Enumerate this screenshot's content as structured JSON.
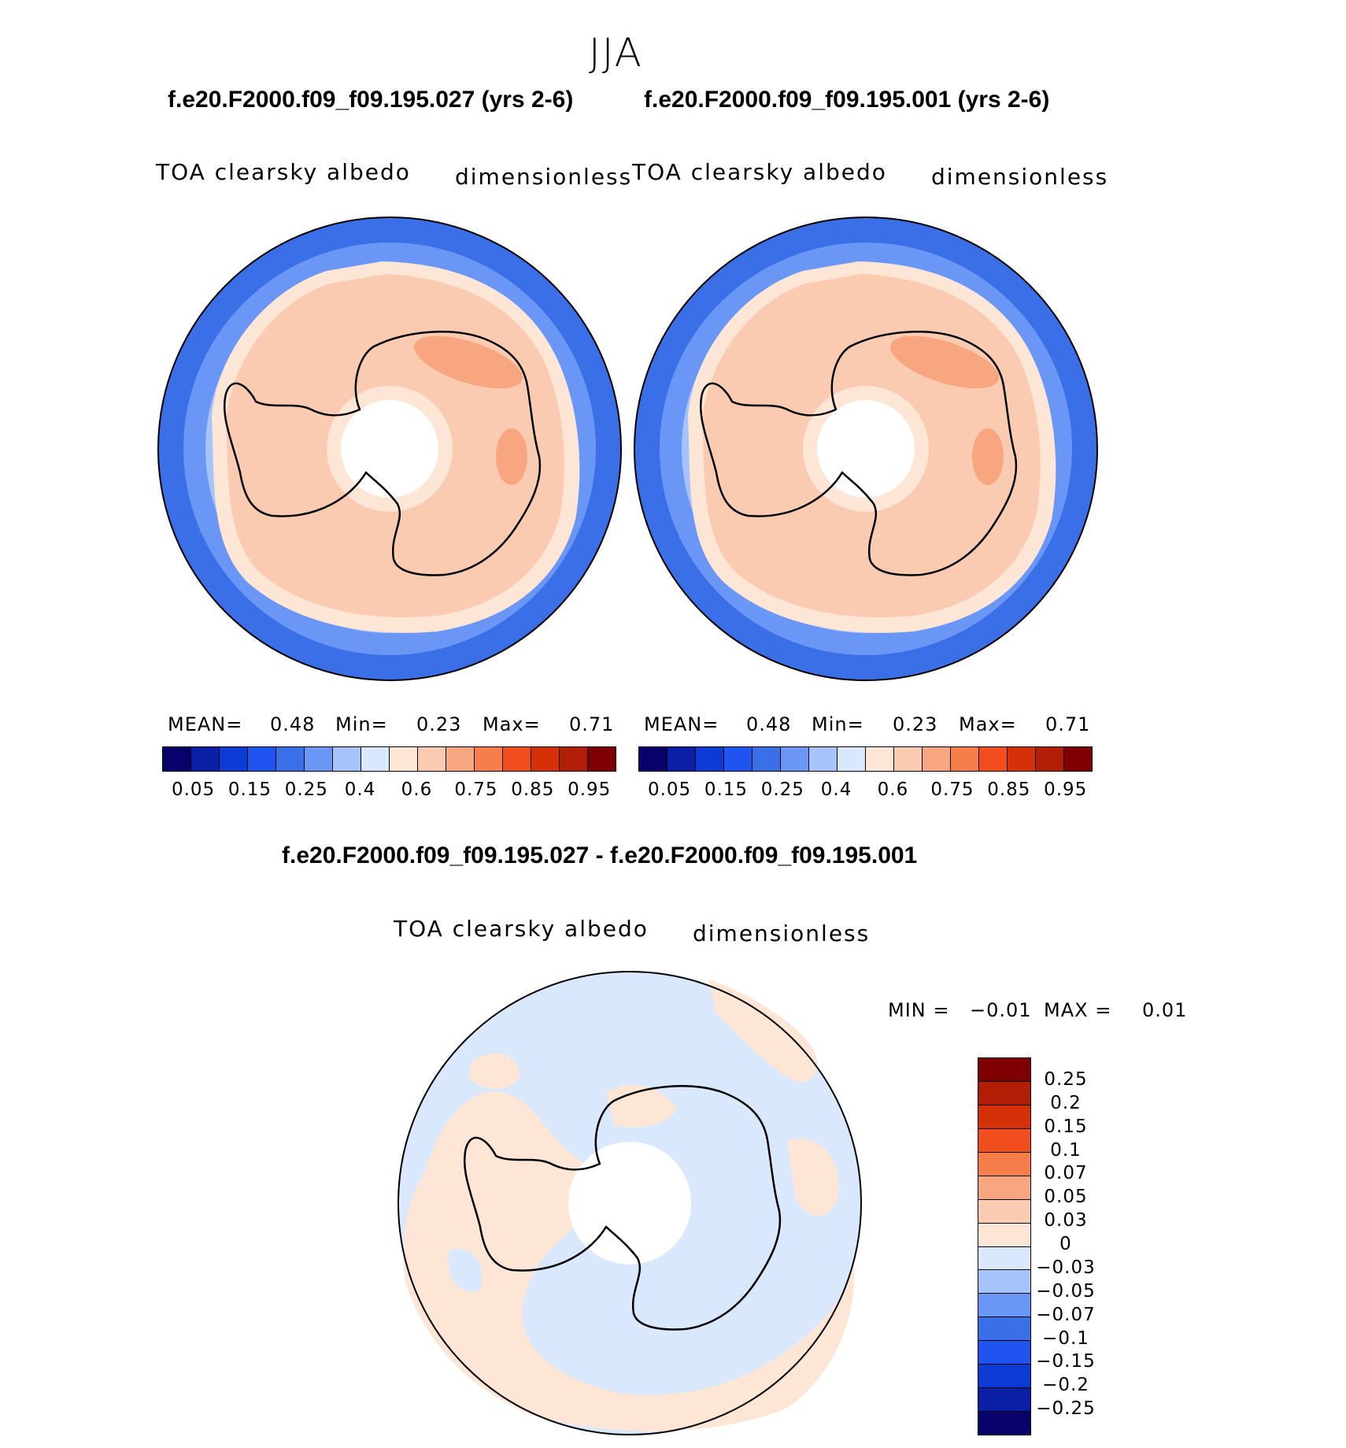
{
  "season": "JJA",
  "panels": [
    {
      "case_title": "f.e20.F2000.f09_f09.195.027 (yrs 2-6)",
      "variable": "TOA clearsky albedo",
      "units": "dimensionless",
      "stats": {
        "mean_label": "MEAN=",
        "mean": "0.48",
        "min_label": "Min=",
        "min": "0.23",
        "max_label": "Max=",
        "max": "0.71"
      }
    },
    {
      "case_title": "f.e20.F2000.f09_f09.195.001 (yrs 2-6)",
      "variable": "TOA clearsky albedo",
      "units": "dimensionless",
      "stats": {
        "mean_label": "MEAN=",
        "mean": "0.48",
        "min_label": "Min=",
        "min": "0.23",
        "max_label": "Max=",
        "max": "0.71"
      }
    }
  ],
  "abs_colorbar": {
    "colors": [
      "#08006b",
      "#0a1fa6",
      "#0d39d4",
      "#1f54f0",
      "#3b6fe8",
      "#6a96f5",
      "#a6c4fb",
      "#d9e8fd",
      "#fde6d6",
      "#fbcbb1",
      "#f8a67f",
      "#f67e4b",
      "#f24d1f",
      "#d63008",
      "#b11d05",
      "#7e0003"
    ],
    "tick_labels": [
      "0.05",
      "0.15",
      "0.25",
      "0.4",
      "0.6",
      "0.75",
      "0.85",
      "0.95"
    ]
  },
  "diff_panel": {
    "title": "f.e20.F2000.f09_f09.195.027 - f.e20.F2000.f09_f09.195.001",
    "variable": "TOA clearsky albedo",
    "units": "dimensionless",
    "stats": {
      "min_label": "MIN =",
      "min": "−0.01",
      "max_label": "MAX =",
      "max": "0.01"
    },
    "colors": [
      "#7e0003",
      "#b11d05",
      "#d63008",
      "#f24d1f",
      "#f67e4b",
      "#f8a67f",
      "#fbcbb1",
      "#fde6d6",
      "#d9e8fd",
      "#a6c4fb",
      "#6a96f5",
      "#3b6fe8",
      "#1f54f0",
      "#0d39d4",
      "#0a1fa6",
      "#08006b"
    ],
    "tick_labels": [
      "0.25",
      "0.2",
      "0.15",
      "0.1",
      "0.07",
      "0.05",
      "0.03",
      "0",
      "−0.03",
      "−0.05",
      "−0.07",
      "−0.1",
      "−0.15",
      "−0.2",
      "−0.25"
    ]
  }
}
